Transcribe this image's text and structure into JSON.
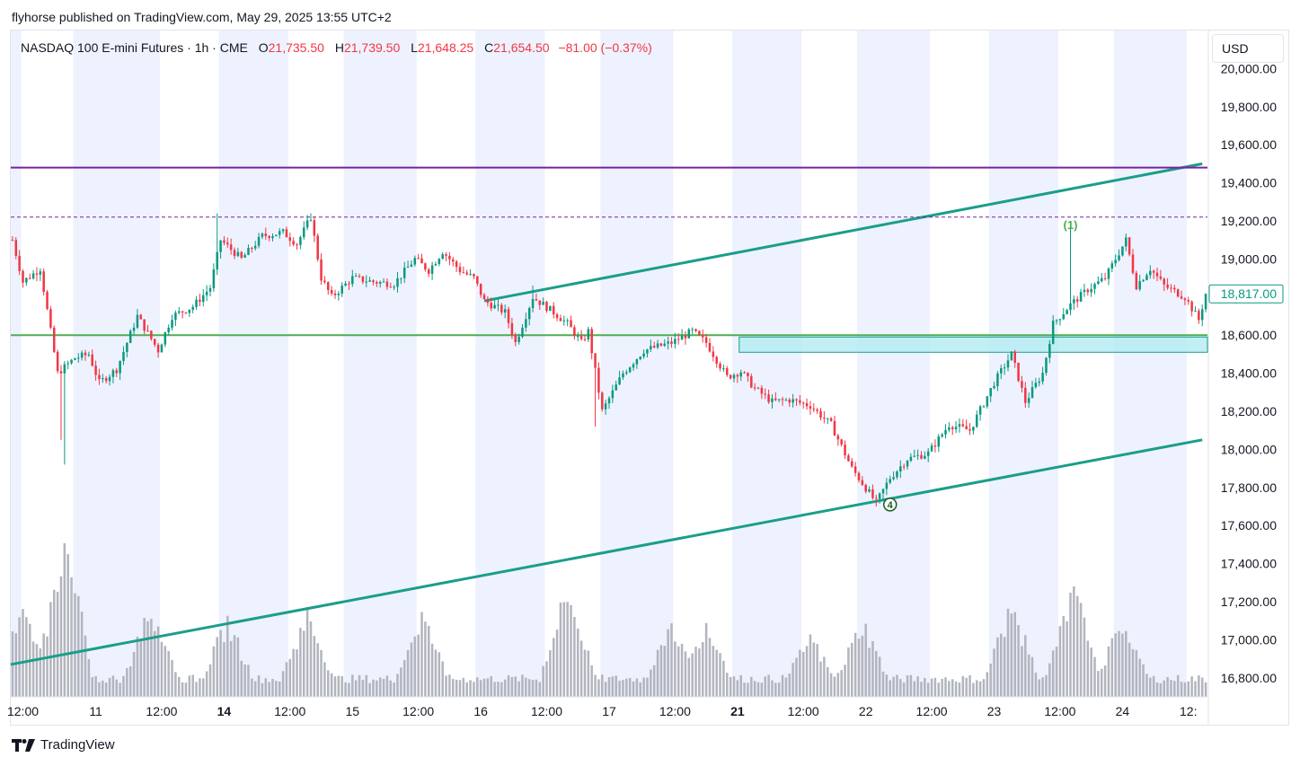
{
  "publisher_line": "flyhorse published on TradingView.com, May 29, 2025 13:55 UTC+2",
  "brand": "TradingView",
  "currency": "USD",
  "legend": {
    "symbol": "NASDAQ 100 E-mini Futures · 1h · CME",
    "open_label": "O",
    "open": "21,735.50",
    "high_label": "H",
    "high": "21,739.50",
    "low_label": "L",
    "low": "21,648.25",
    "close_label": "C",
    "close": "21,654.50",
    "change": "−81.00 (−0.37%)"
  },
  "colors": {
    "up": "#089981",
    "down": "#f23645",
    "volume": "#b2b5be",
    "session_shade": "#eef2fe",
    "channel": "#1a9e8a",
    "resistance": "#7b1fa2",
    "support": "#4caf50",
    "zone": "#b2ebf2",
    "last_price_tag": "#089981"
  },
  "chart_data": {
    "type": "candlestick",
    "timeframe": "1h",
    "y_axis": {
      "min": 16700,
      "max": 20200,
      "ticks": [
        "20,000.00",
        "19,800.00",
        "19,600.00",
        "19,400.00",
        "19,200.00",
        "19,000.00",
        "18,800.00",
        "18,600.00",
        "18,400.00",
        "18,200.00",
        "18,000.00",
        "17,800.00",
        "17,600.00",
        "17,400.00",
        "17,200.00",
        "17,000.00",
        "16,800.00"
      ],
      "tick_values": [
        20000,
        19800,
        19600,
        19400,
        19200,
        19000,
        18800,
        18600,
        18400,
        18200,
        18000,
        17800,
        17600,
        17400,
        17200,
        17000,
        16800
      ]
    },
    "x_axis": {
      "labels": [
        "12:00",
        "11",
        "12:00",
        "14",
        "12:00",
        "15",
        "12:00",
        "16",
        "12:00",
        "17",
        "12:00",
        "21",
        "12:00",
        "22",
        "12:00",
        "23",
        "12:00",
        "24",
        "12:"
      ],
      "label_bar_index": [
        3,
        24,
        43,
        61,
        80,
        98,
        117,
        135,
        154,
        172,
        191,
        209,
        228,
        246,
        265,
        283,
        302,
        320,
        339
      ],
      "bold_labels": [
        "14",
        "21"
      ]
    },
    "last_price": "18,817.00",
    "last_price_value": 18817,
    "annotations": [
      {
        "text": "(1)",
        "bar": 305,
        "price": 19180
      },
      {
        "text": "4",
        "bar": 253,
        "price": 17710
      }
    ],
    "levels": {
      "resistance_solid": 19480,
      "resistance_dashed": 19220,
      "support_line": 18600,
      "zone_top": 18590,
      "zone_bottom": 18510,
      "zone_start_bar": 210
    },
    "channel_upper": {
      "bar1": 136,
      "price1": 18780,
      "bar2": 343,
      "price2": 19500
    },
    "channel_lower": {
      "bar1": 0,
      "price1": 16870,
      "bar2": 343,
      "price2": 18050
    },
    "session_shading_days": [
      0,
      1,
      2,
      3,
      4,
      5,
      6,
      7,
      8,
      9
    ],
    "ohlc": "see script"
  }
}
